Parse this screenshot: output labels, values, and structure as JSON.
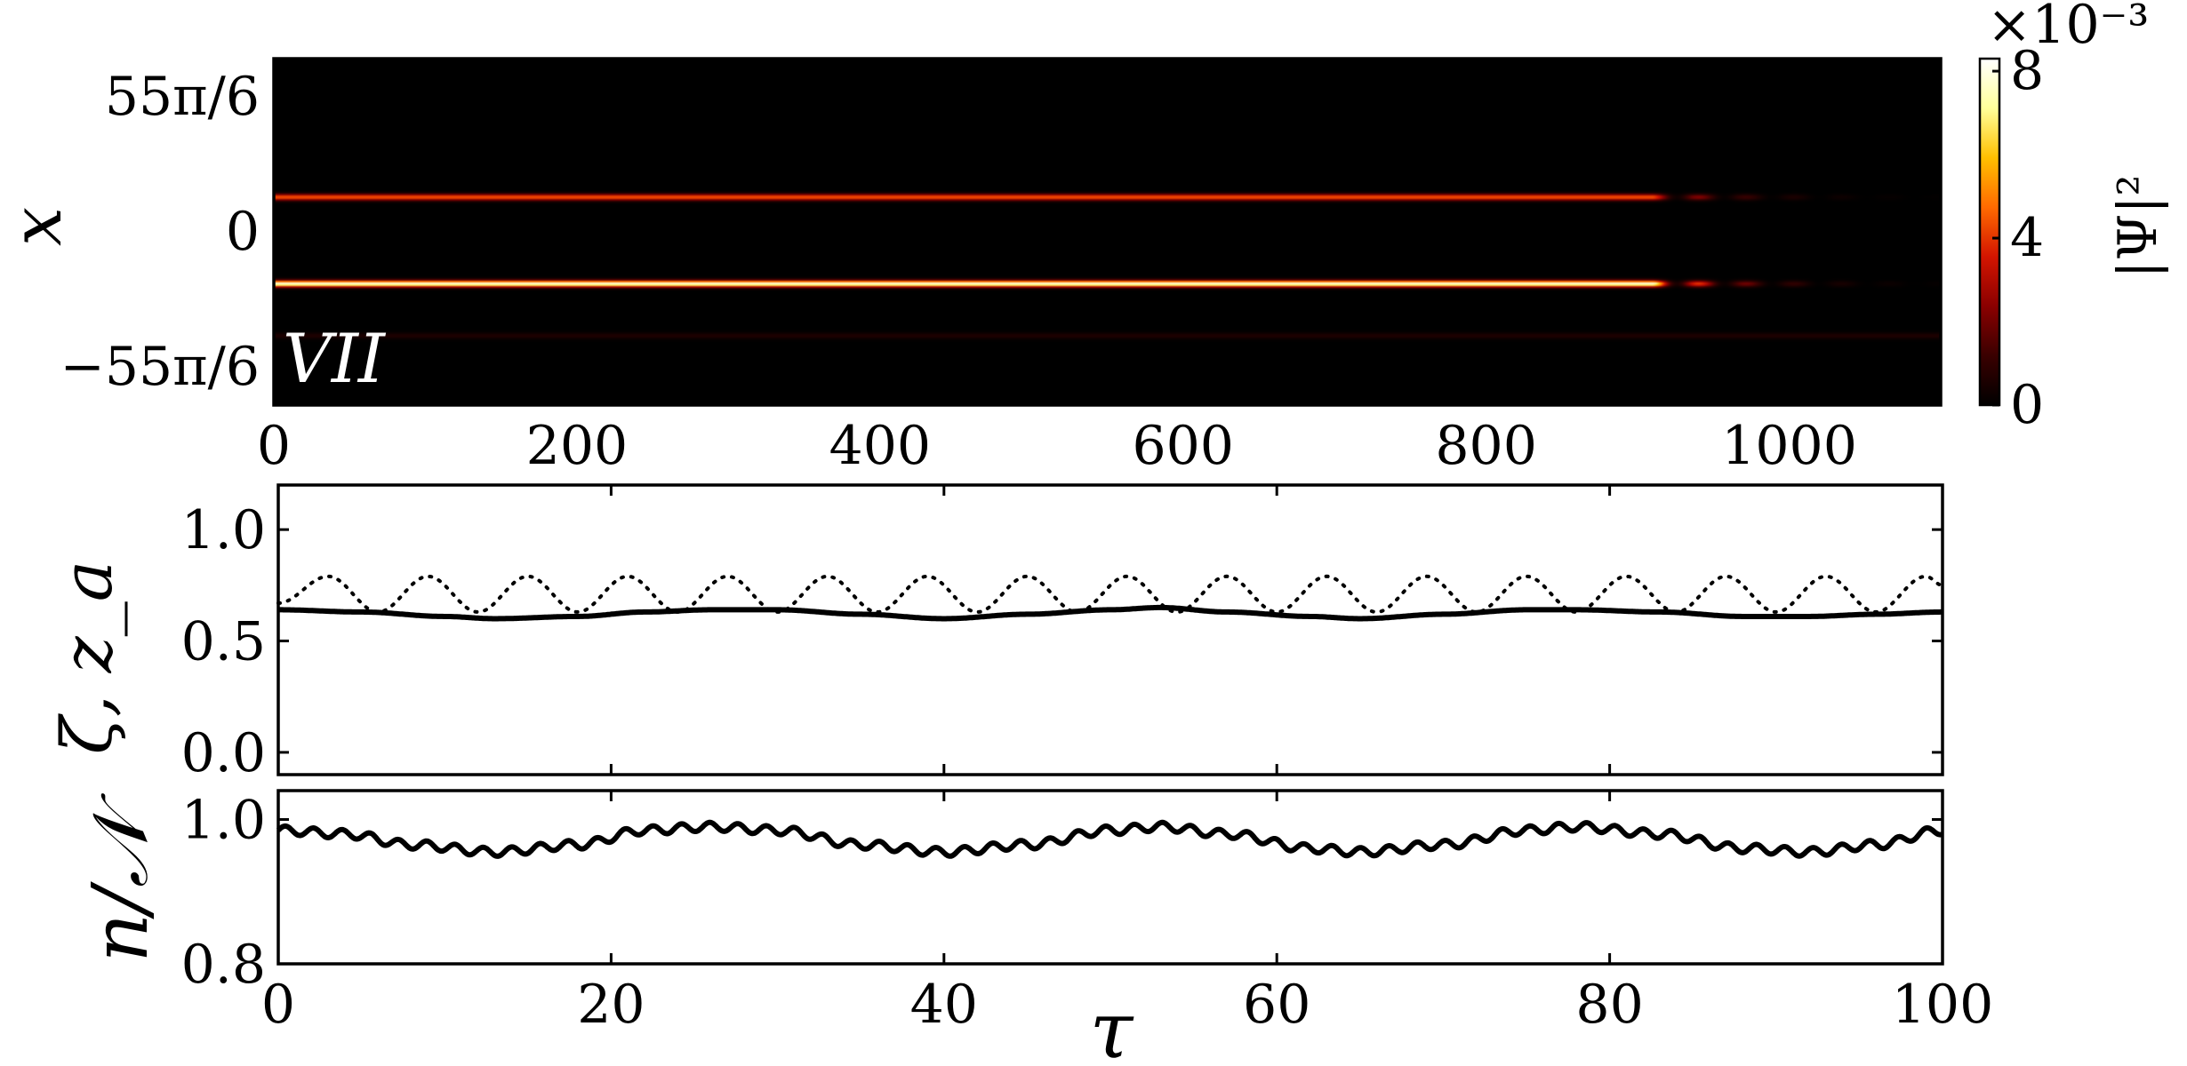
{
  "chart_data": [
    {
      "type": "heatmap",
      "panel_label": "VII",
      "xlabel": "",
      "ylabel": "x",
      "xlim": [
        0,
        1100
      ],
      "x_ticks": [
        "0",
        "200",
        "400",
        "600",
        "800",
        "1000"
      ],
      "x_tick_values": [
        0,
        200,
        400,
        600,
        800,
        1000
      ],
      "y_ticks": [
        "−55π/6",
        "0",
        "55π/6"
      ],
      "colorbar": {
        "label": "|Ψ|²",
        "scale_label": "×10⁻³",
        "ticks": [
          "0",
          "4",
          "8"
        ],
        "tick_values": [
          0,
          4,
          8
        ],
        "range": [
          0,
          8.3
        ],
        "colormap": [
          "#000000",
          "#3a0000",
          "#8b0000",
          "#d41500",
          "#ff6a00",
          "#ffc000",
          "#ffff9a",
          "#ffffff"
        ]
      },
      "bands": [
        {
          "y": 0.2,
          "peak": 4.5,
          "until": 910
        },
        {
          "y": -0.3,
          "peak": 8.0,
          "until": 910
        },
        {
          "y": -0.6,
          "peak": 0.6,
          "until": 1100
        }
      ]
    },
    {
      "type": "line",
      "xlabel": "",
      "ylabel": "ζ, z_a",
      "xlim": [
        0,
        100
      ],
      "ylim": [
        -0.1,
        1.2
      ],
      "x_ticks": [
        "0",
        "20",
        "40",
        "60",
        "80",
        "100"
      ],
      "y_ticks": [
        "0.0",
        "0.5",
        "1.0"
      ],
      "y_tick_values": [
        0.0,
        0.5,
        1.0
      ],
      "series": [
        {
          "style": "dotted",
          "x": [
            0,
            3,
            6,
            9,
            12,
            15,
            18,
            21,
            24,
            27,
            30,
            33,
            36,
            39,
            42,
            45,
            48,
            51,
            54,
            57,
            60,
            63,
            66,
            69,
            72,
            75,
            78,
            81,
            84,
            87,
            90,
            93,
            96,
            99,
            100
          ],
          "y": [
            0.67,
            0.79,
            0.63,
            0.79,
            0.63,
            0.79,
            0.63,
            0.79,
            0.63,
            0.79,
            0.63,
            0.79,
            0.63,
            0.79,
            0.63,
            0.79,
            0.63,
            0.79,
            0.63,
            0.79,
            0.63,
            0.79,
            0.63,
            0.79,
            0.63,
            0.79,
            0.63,
            0.79,
            0.63,
            0.79,
            0.63,
            0.79,
            0.63,
            0.79,
            0.75
          ]
        },
        {
          "style": "solid",
          "x": [
            0,
            5,
            10,
            13,
            18,
            22,
            26,
            30,
            35,
            40,
            45,
            50,
            53,
            57,
            62,
            65,
            70,
            75,
            78,
            83,
            88,
            92,
            96,
            100
          ],
          "y": [
            0.64,
            0.63,
            0.61,
            0.6,
            0.61,
            0.63,
            0.64,
            0.64,
            0.62,
            0.6,
            0.62,
            0.64,
            0.65,
            0.63,
            0.61,
            0.6,
            0.62,
            0.64,
            0.64,
            0.63,
            0.61,
            0.61,
            0.62,
            0.63
          ]
        }
      ]
    },
    {
      "type": "line",
      "xlabel": "τ",
      "ylabel": "n/𝒩",
      "xlim": [
        0,
        100
      ],
      "ylim": [
        0.8,
        1.04
      ],
      "x_ticks": [
        "0",
        "20",
        "40",
        "60",
        "80",
        "100"
      ],
      "x_tick_values": [
        0,
        20,
        40,
        60,
        80,
        100
      ],
      "y_ticks": [
        "0.8",
        "1.0"
      ],
      "y_tick_values": [
        0.8,
        1.0
      ],
      "series": [
        {
          "style": "solid",
          "oscillation_amplitude": 0.006,
          "oscillation_period": 1.7,
          "x": [
            0,
            4,
            8,
            13,
            18,
            22,
            26,
            30,
            35,
            40,
            45,
            50,
            53,
            57,
            62,
            65,
            70,
            75,
            78,
            83,
            88,
            92,
            96,
            100
          ],
          "y": [
            0.985,
            0.98,
            0.965,
            0.955,
            0.965,
            0.985,
            0.99,
            0.985,
            0.965,
            0.955,
            0.965,
            0.985,
            0.99,
            0.98,
            0.96,
            0.955,
            0.965,
            0.985,
            0.99,
            0.98,
            0.96,
            0.955,
            0.965,
            0.985
          ]
        }
      ]
    }
  ]
}
